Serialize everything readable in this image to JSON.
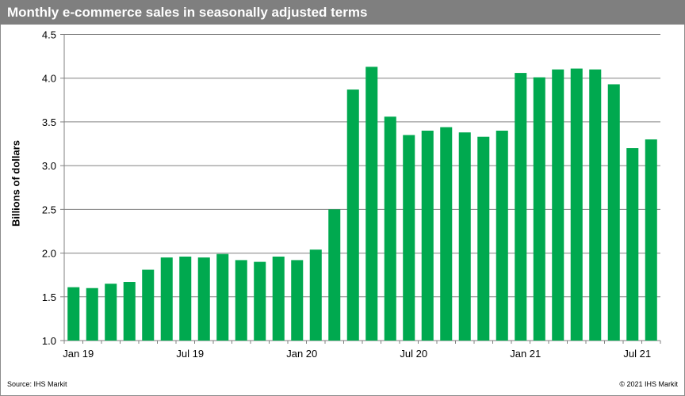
{
  "chart_data": {
    "type": "bar",
    "title": "Monthly e-commerce sales in seasonally adjusted terms",
    "ylabel": "Billions of dollars",
    "xlabel": "",
    "ylim": [
      1.0,
      4.5
    ],
    "yticks": [
      "1.0",
      "1.5",
      "2.0",
      "2.5",
      "3.0",
      "3.5",
      "4.0",
      "4.5"
    ],
    "grid": true,
    "bar_color": "#00a94f",
    "categories": [
      "Jan 19",
      "Feb 19",
      "Mar 19",
      "Apr 19",
      "May 19",
      "Jun 19",
      "Jul 19",
      "Aug 19",
      "Sep 19",
      "Oct 19",
      "Nov 19",
      "Dec 19",
      "Jan 20",
      "Feb 20",
      "Mar 20",
      "Apr 20",
      "May 20",
      "Jun 20",
      "Jul 20",
      "Aug 20",
      "Sep 20",
      "Oct 20",
      "Nov 20",
      "Dec 20",
      "Jan 21",
      "Feb 21",
      "Mar 21",
      "Apr 21",
      "May 21",
      "Jun 21",
      "Jul 21",
      "Aug 21"
    ],
    "xtick_labels": {
      "0": "Jan 19",
      "6": "Jul 19",
      "12": "Jan 20",
      "18": "Jul 20",
      "24": "Jan 21",
      "30": "Jul 21"
    },
    "values": [
      1.61,
      1.6,
      1.65,
      1.67,
      1.81,
      1.95,
      1.96,
      1.95,
      1.99,
      1.92,
      1.9,
      1.96,
      1.92,
      2.04,
      2.5,
      3.87,
      4.13,
      3.56,
      3.35,
      3.4,
      3.44,
      3.38,
      3.33,
      3.4,
      4.06,
      4.01,
      4.1,
      4.11,
      4.1,
      3.93,
      3.2,
      3.3
    ]
  },
  "footer": {
    "source": "Source: IHS Markit",
    "copyright": "© 2021 IHS Markit"
  }
}
